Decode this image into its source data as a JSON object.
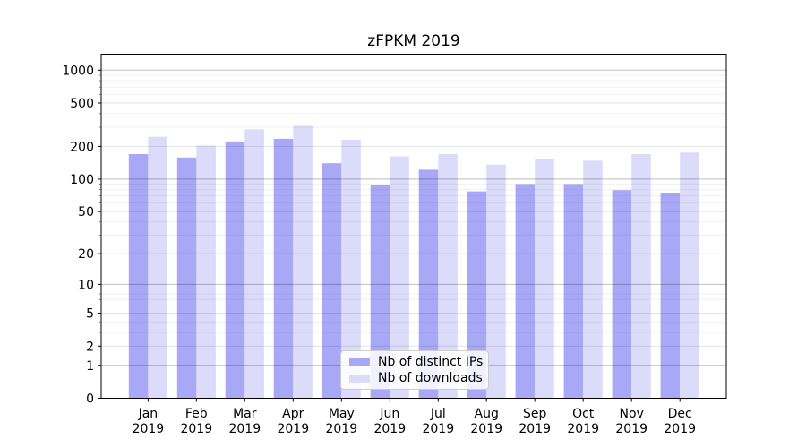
{
  "figure": {
    "background": "#ffffff"
  },
  "chart_data": {
    "type": "bar",
    "title": "zFPKM 2019",
    "categories": [
      "Jan",
      "Feb",
      "Mar",
      "Apr",
      "May",
      "Jun",
      "Jul",
      "Aug",
      "Sep",
      "Oct",
      "Nov",
      "Dec"
    ],
    "category_year_line": "2019",
    "series": [
      {
        "name": "Nb of distinct IPs",
        "color": "#a8a8f7",
        "values": [
          170,
          158,
          222,
          235,
          140,
          89,
          122,
          77,
          90,
          90,
          79,
          75
        ]
      },
      {
        "name": "Nb of downloads",
        "color": "#dcdcfa",
        "values": [
          245,
          203,
          287,
          310,
          230,
          162,
          170,
          136,
          154,
          148,
          170,
          176
        ]
      }
    ],
    "xlabel": "",
    "ylabel": "",
    "yscale": "log1p",
    "yticks": [
      0,
      1,
      2,
      5,
      10,
      20,
      50,
      100,
      200,
      500,
      1000
    ],
    "ylim": [
      0,
      1400
    ],
    "xlim": [
      -0.97,
      11.96
    ],
    "grid": "on",
    "grid_decades": [
      1,
      10,
      100,
      1000
    ],
    "grid_minor_multipliers": [
      3,
      4,
      6,
      7,
      8,
      9
    ],
    "legend_position": "lower center",
    "axis_color": "#000000",
    "grid_major_color": "rgba(0,0,0,0.26)",
    "grid_labeled_color": "rgba(0,0,0,0.10)",
    "grid_minor_color": "rgba(0,0,0,0.055)"
  }
}
